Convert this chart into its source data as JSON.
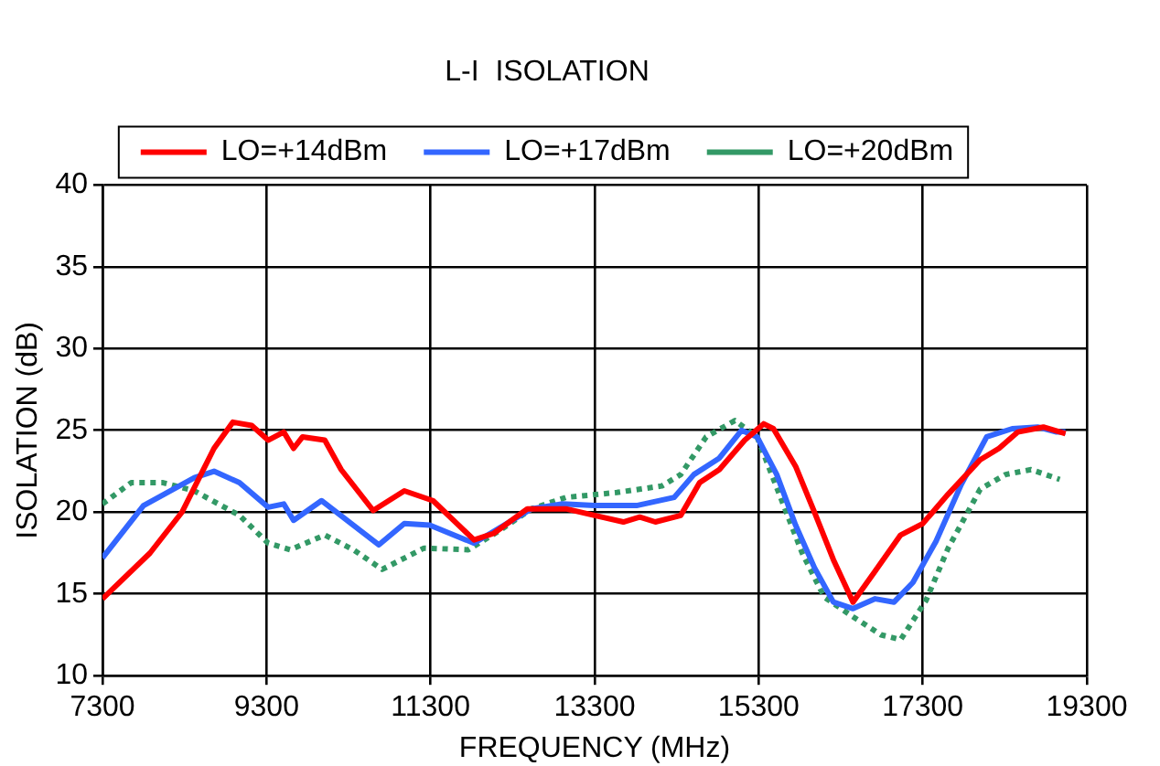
{
  "chart_data": {
    "type": "line",
    "title": "L-I  ISOLATION",
    "xlabel": "FREQUENCY (MHz)",
    "ylabel": "ISOLATION (dB)",
    "xlim": [
      7300,
      19300
    ],
    "xticks": [
      7300,
      9300,
      11300,
      13300,
      15300,
      17300,
      19300
    ],
    "ylim": [
      10,
      40
    ],
    "yticks": [
      10,
      15,
      20,
      25,
      30,
      35,
      40
    ],
    "grid": true,
    "legend": "top",
    "marker": "none",
    "series": [
      {
        "name": "LO=+14dBm",
        "color": "#ff0000",
        "line_style": "solid",
        "x": [
          7300,
          7880,
          8270,
          8660,
          8890,
          9120,
          9320,
          9510,
          9630,
          9740,
          10010,
          10210,
          10600,
          10980,
          11330,
          11830,
          12070,
          12480,
          12950,
          13300,
          13650,
          13850,
          14040,
          14350,
          14580,
          14820,
          15130,
          15360,
          15480,
          15750,
          15980,
          16210,
          16450,
          16720,
          17030,
          17300,
          17610,
          18000,
          18230,
          18460,
          18770,
          19040
        ],
        "values": [
          14.7,
          17.5,
          20,
          23.9,
          25.5,
          25.3,
          24.4,
          24.9,
          23.9,
          24.6,
          24.4,
          22.6,
          20.1,
          21.3,
          20.7,
          18.3,
          18.7,
          20.2,
          20.2,
          19.8,
          19.4,
          19.7,
          19.4,
          19.8,
          21.8,
          22.6,
          24.4,
          25.4,
          25.1,
          22.8,
          20,
          17.1,
          14.5,
          16.4,
          18.6,
          19.3,
          21.1,
          23.2,
          23.9,
          24.9,
          25.2,
          24.8
        ]
      },
      {
        "name": "LO=+17dBm",
        "color": "#3366ff",
        "line_style": "solid",
        "x": [
          7300,
          7800,
          8420,
          8660,
          8970,
          9320,
          9510,
          9630,
          9970,
          10280,
          10670,
          10980,
          11290,
          11830,
          12530,
          12910,
          13300,
          13810,
          14270,
          14510,
          14820,
          15090,
          15280,
          15520,
          15750,
          15980,
          16210,
          16450,
          16720,
          16950,
          17180,
          17460,
          17770,
          18080,
          18390,
          18700,
          18930,
          19040
        ],
        "values": [
          17.2,
          20.4,
          22.1,
          22.5,
          21.8,
          20.3,
          20.5,
          19.5,
          20.7,
          19.5,
          18,
          19.3,
          19.2,
          18.1,
          20.2,
          20.5,
          20.4,
          20.4,
          20.9,
          22.3,
          23.3,
          25,
          24.6,
          22.3,
          19.2,
          16.6,
          14.5,
          14.1,
          14.7,
          14.5,
          15.7,
          18.2,
          21.7,
          24.6,
          25.1,
          25.2,
          24.9,
          24.9
        ]
      },
      {
        "name": "LO=+20dBm",
        "color": "#339966",
        "line_style": "dotted",
        "x": [
          7300,
          7650,
          8040,
          8420,
          8970,
          9320,
          9590,
          10010,
          10360,
          10710,
          11220,
          11760,
          12150,
          12530,
          12950,
          13570,
          14120,
          14350,
          14660,
          15010,
          15280,
          15520,
          15830,
          16100,
          16450,
          16790,
          17030,
          17340,
          17610,
          18000,
          18310,
          18620,
          18970
        ],
        "values": [
          20.5,
          21.8,
          21.8,
          21.3,
          19.8,
          18.1,
          17.7,
          18.6,
          17.7,
          16.5,
          17.8,
          17.7,
          18.9,
          20.2,
          20.9,
          21.2,
          21.6,
          22.3,
          24.6,
          25.6,
          24.6,
          21.5,
          17.5,
          14.8,
          13.6,
          12.5,
          12.2,
          14.6,
          17.8,
          21.4,
          22.3,
          22.6,
          22
        ]
      }
    ]
  }
}
